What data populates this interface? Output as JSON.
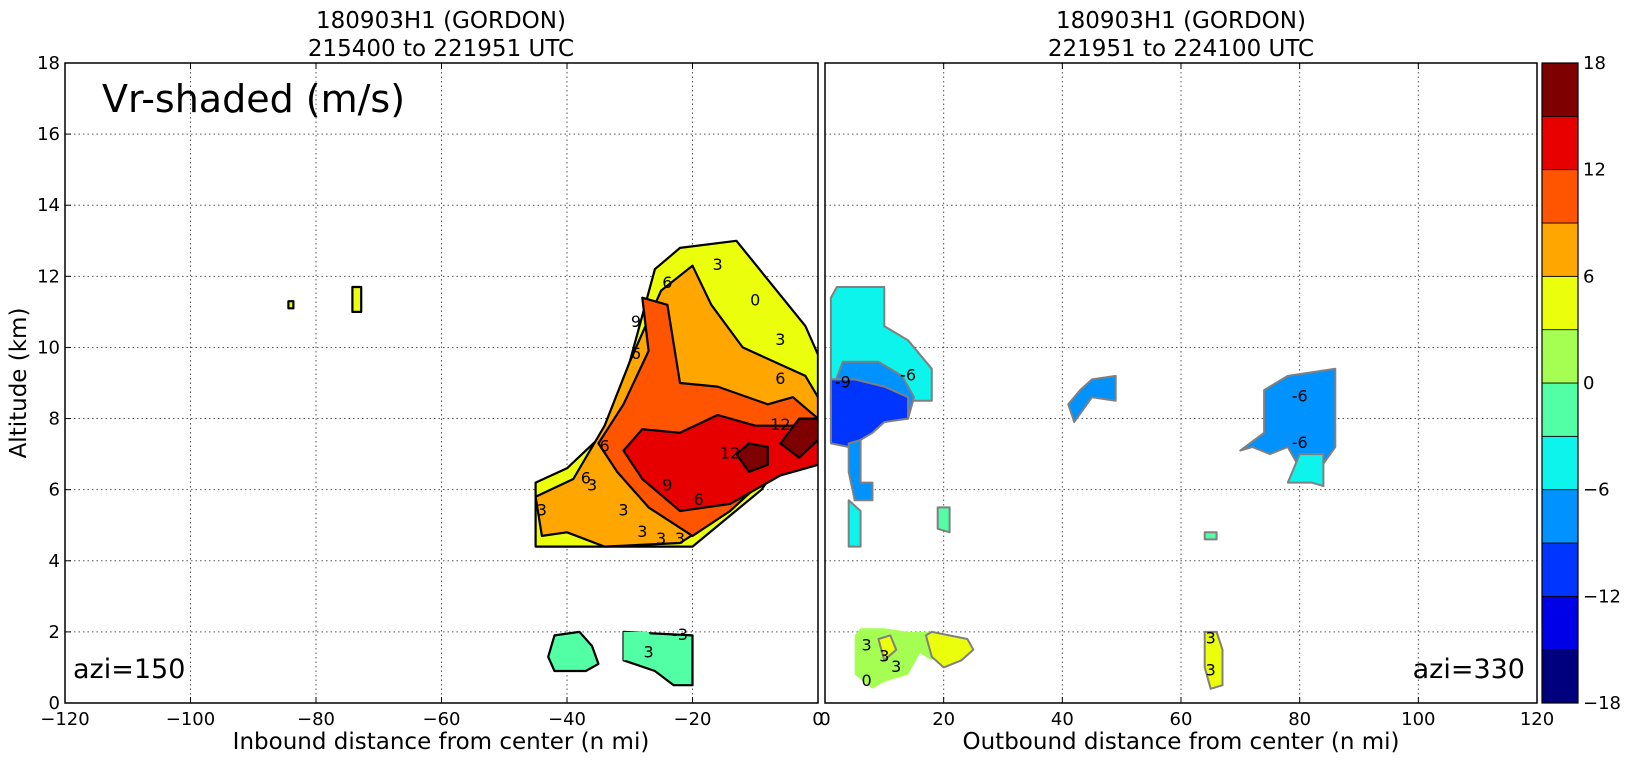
{
  "chart_data": [
    {
      "type": "heatmap",
      "title": [
        "180903H1 (GORDON)",
        "215400 to 221951 UTC"
      ],
      "annotation": "Vr-shaded (m/s)",
      "corner_label": "azi=150",
      "xlabel": "Inbound distance from center (n mi)",
      "ylabel": "Altitude (km)",
      "xlim": [
        -120,
        0
      ],
      "ylim": [
        0,
        18
      ],
      "xticks": [
        "−120",
        "−100",
        "−80",
        "−60",
        "−40",
        "−20",
        "0"
      ],
      "yticks": [
        "0",
        "2",
        "4",
        "6",
        "8",
        "10",
        "12",
        "14",
        "16",
        "18"
      ],
      "grid": true,
      "regions": [
        {
          "value": 3,
          "polygon": [
            [
              -45,
              4.4
            ],
            [
              -45,
              6.2
            ],
            [
              -40,
              6.6
            ],
            [
              -34,
              7.6
            ],
            [
              -30,
              9.6
            ],
            [
              -26,
              12.2
            ],
            [
              -22,
              12.8
            ],
            [
              -13,
              13
            ],
            [
              -2,
              10.6
            ],
            [
              0,
              9.8
            ],
            [
              0,
              7.8
            ],
            [
              -4,
              7.3
            ],
            [
              -9,
              6
            ],
            [
              -20,
              4.4
            ]
          ]
        },
        {
          "value": 6,
          "polygon": [
            [
              -44,
              4.7
            ],
            [
              -45,
              5.8
            ],
            [
              -39,
              6.3
            ],
            [
              -34,
              7.8
            ],
            [
              -30,
              9.6
            ],
            [
              -25,
              11.6
            ],
            [
              -20,
              12.3
            ],
            [
              -17,
              11.2
            ],
            [
              -12,
              10
            ],
            [
              -2,
              9.2
            ],
            [
              0,
              8.6
            ],
            [
              0,
              7.6
            ],
            [
              -6,
              6.8
            ],
            [
              -14,
              5.4
            ],
            [
              -22,
              4.5
            ],
            [
              -34,
              4.4
            ],
            [
              -40,
              4.8
            ]
          ]
        },
        {
          "value": 9,
          "polygon": [
            [
              -35,
              7.3
            ],
            [
              -31,
              8.4
            ],
            [
              -27,
              9.9
            ],
            [
              -28,
              11.4
            ],
            [
              -24,
              11.2
            ],
            [
              -22,
              9
            ],
            [
              -16,
              8.9
            ],
            [
              -8,
              8.4
            ],
            [
              -4,
              8.6
            ],
            [
              0,
              8
            ],
            [
              0,
              7.3
            ],
            [
              -6,
              6.7
            ],
            [
              -14,
              5.4
            ],
            [
              -20,
              4.7
            ],
            [
              -27,
              5.5
            ],
            [
              -32,
              6.5
            ]
          ]
        },
        {
          "value": 12,
          "polygon": [
            [
              -31,
              7.1
            ],
            [
              -28,
              7.7
            ],
            [
              -22,
              7.6
            ],
            [
              -16,
              8.1
            ],
            [
              -10,
              7.8
            ],
            [
              -4,
              7.8
            ],
            [
              0,
              7.5
            ],
            [
              0,
              6.7
            ],
            [
              -6,
              6.4
            ],
            [
              -14,
              5.6
            ],
            [
              -22,
              5.4
            ],
            [
              -28,
              6.3
            ]
          ]
        },
        {
          "value": 15,
          "polygon": [
            [
              -13,
              7
            ],
            [
              -11,
              7.3
            ],
            [
              -8,
              7.2
            ],
            [
              -8,
              6.7
            ],
            [
              -11,
              6.5
            ]
          ]
        },
        {
          "value": 15,
          "polygon": [
            [
              -6,
              7.3
            ],
            [
              -3,
              8
            ],
            [
              0,
              8
            ],
            [
              0,
              7.4
            ],
            [
              -3,
              6.9
            ]
          ]
        },
        {
          "value": -3,
          "polygon": [
            [
              -43,
              1.3
            ],
            [
              -42,
              1.9
            ],
            [
              -38,
              2
            ],
            [
              -36,
              1.6
            ],
            [
              -35,
              1.1
            ],
            [
              -37,
              0.9
            ],
            [
              -42,
              0.9
            ]
          ]
        },
        {
          "value": -3,
          "polygon": [
            [
              -31,
              2
            ],
            [
              -20,
              1.9
            ],
            [
              -20,
              1.4
            ],
            [
              -20,
              0.5
            ],
            [
              -23,
              0.5
            ],
            [
              -26,
              0.9
            ],
            [
              -31,
              1.2
            ]
          ]
        },
        {
          "value": -1.5,
          "polygon": [
            [
              -31,
              2
            ],
            [
              -27,
              2
            ],
            [
              -26,
              1.6
            ],
            [
              -27,
              1.2
            ],
            [
              -31,
              1.2
            ]
          ]
        },
        {
          "value": 3,
          "polygon": [
            [
              -84.4,
              11.1
            ],
            [
              -84.4,
              11.3
            ],
            [
              -83.6,
              11.3
            ],
            [
              -83.6,
              11.1
            ]
          ]
        },
        {
          "value": 3,
          "polygon": [
            [
              -74.2,
              11
            ],
            [
              -74.2,
              11.7
            ],
            [
              -72.8,
              11.7
            ],
            [
              -72.8,
              11
            ]
          ]
        }
      ],
      "contour_labels": [
        {
          "text": "3",
          "x": -16,
          "y": 12.3
        },
        {
          "text": "6",
          "x": -24,
          "y": 11.8
        },
        {
          "text": "0",
          "x": -10,
          "y": 11.3
        },
        {
          "text": "3",
          "x": -6,
          "y": 10.2
        },
        {
          "text": "9",
          "x": -29,
          "y": 10.7
        },
        {
          "text": "6",
          "x": -29,
          "y": 9.8
        },
        {
          "text": "6",
          "x": -6,
          "y": 9.1
        },
        {
          "text": "12",
          "x": -6,
          "y": 7.8
        },
        {
          "text": "12",
          "x": -14,
          "y": 7
        },
        {
          "text": "6",
          "x": -34,
          "y": 7.2
        },
        {
          "text": "6",
          "x": -37,
          "y": 6.3
        },
        {
          "text": "3",
          "x": -36,
          "y": 6.1
        },
        {
          "text": "3",
          "x": -44,
          "y": 5.4
        },
        {
          "text": "9",
          "x": -24,
          "y": 6.1
        },
        {
          "text": "6",
          "x": -19,
          "y": 5.7
        },
        {
          "text": "3",
          "x": -31,
          "y": 5.4
        },
        {
          "text": "3",
          "x": -28,
          "y": 4.8
        },
        {
          "text": "3",
          "x": -25,
          "y": 4.6
        },
        {
          "text": "3",
          "x": -22,
          "y": 4.6
        },
        {
          "text": "-3",
          "x": -22,
          "y": 1.9
        },
        {
          "text": "3",
          "x": -27,
          "y": 1.4
        }
      ]
    },
    {
      "type": "heatmap",
      "title": [
        "180903H1 (GORDON)",
        "221951 to 224100 UTC"
      ],
      "corner_label": "azi=330",
      "xlabel": "Outbound distance from center (n mi)",
      "ylabel": "",
      "xlim": [
        0,
        120
      ],
      "ylim": [
        0,
        18
      ],
      "xticks": [
        "0",
        "20",
        "40",
        "60",
        "80",
        "100",
        "120"
      ],
      "grid": true,
      "regions": [
        {
          "value": -6,
          "polygon": [
            [
              1,
              11.4
            ],
            [
              2,
              11.7
            ],
            [
              10,
              11.7
            ],
            [
              10,
              10.6
            ],
            [
              14,
              10.2
            ],
            [
              18,
              9.4
            ],
            [
              18,
              8.5
            ],
            [
              14,
              8.5
            ],
            [
              14,
              8
            ],
            [
              2,
              7.8
            ],
            [
              1,
              8.4
            ]
          ]
        },
        {
          "value": -9,
          "polygon": [
            [
              1,
              8.7
            ],
            [
              3,
              9.6
            ],
            [
              9,
              9.6
            ],
            [
              13,
              9.2
            ],
            [
              15,
              8.6
            ],
            [
              14,
              8
            ],
            [
              8,
              7.9
            ],
            [
              2,
              7.9
            ],
            [
              1,
              8.1
            ]
          ]
        },
        {
          "value": -12,
          "polygon": [
            [
              1,
              7.9
            ],
            [
              1,
              9.1
            ],
            [
              5,
              9.1
            ],
            [
              10,
              8.9
            ],
            [
              14,
              8.6
            ],
            [
              14,
              8
            ],
            [
              10,
              7.9
            ],
            [
              8,
              7.6
            ],
            [
              6,
              7.4
            ],
            [
              4,
              7.2
            ],
            [
              1,
              7.3
            ]
          ]
        },
        {
          "value": -9,
          "polygon": [
            [
              4,
              7.3
            ],
            [
              6,
              7.4
            ],
            [
              6,
              6.2
            ],
            [
              8,
              6.2
            ],
            [
              8,
              5.7
            ],
            [
              5,
              5.7
            ],
            [
              4,
              6.5
            ]
          ]
        },
        {
          "value": -6,
          "polygon": [
            [
              4,
              5.7
            ],
            [
              4,
              4.4
            ],
            [
              6,
              4.4
            ],
            [
              6,
              5.4
            ]
          ]
        },
        {
          "value": -3,
          "polygon": [
            [
              19,
              4.9
            ],
            [
              19,
              5.5
            ],
            [
              21,
              5.5
            ],
            [
              21,
              4.8
            ]
          ]
        },
        {
          "value": -9,
          "polygon": [
            [
              41,
              8.4
            ],
            [
              43,
              8.8
            ],
            [
              45,
              9.1
            ],
            [
              49,
              9.2
            ],
            [
              49,
              8.5
            ],
            [
              45,
              8.6
            ],
            [
              42,
              7.9
            ]
          ]
        },
        {
          "value": -9,
          "polygon": [
            [
              74,
              8.8
            ],
            [
              78,
              9.2
            ],
            [
              86,
              9.4
            ],
            [
              86,
              7.2
            ],
            [
              83,
              6.5
            ],
            [
              80,
              6.6
            ],
            [
              78,
              7.2
            ],
            [
              75,
              7
            ],
            [
              72,
              7.2
            ],
            [
              70,
              7.1
            ],
            [
              74,
              7.6
            ]
          ]
        },
        {
          "value": -6,
          "polygon": [
            [
              78,
              6.2
            ],
            [
              80,
              6.2
            ],
            [
              82,
              6.2
            ],
            [
              84,
              6.1
            ],
            [
              84,
              7
            ],
            [
              80,
              7
            ]
          ]
        },
        {
          "value": -3,
          "polygon": [
            [
              64,
              4.6
            ],
            [
              64,
              4.8
            ],
            [
              66,
              4.8
            ],
            [
              66,
              4.6
            ]
          ]
        },
        {
          "value": 0,
          "polygon": [
            [
              5,
              1.9
            ],
            [
              6,
              2.1
            ],
            [
              10,
              2.1
            ],
            [
              14,
              2
            ],
            [
              18,
              2
            ],
            [
              20,
              1.4
            ],
            [
              18,
              1.2
            ],
            [
              16,
              1.4
            ],
            [
              14,
              0.8
            ],
            [
              10,
              0.6
            ],
            [
              8,
              0.4
            ],
            [
              5,
              0.8
            ]
          ]
        },
        {
          "value": 3,
          "polygon": [
            [
              17,
              1.9
            ],
            [
              18,
              2
            ],
            [
              24,
              1.8
            ],
            [
              25,
              1.5
            ],
            [
              23,
              1.2
            ],
            [
              20,
              1
            ],
            [
              18,
              1.3
            ]
          ]
        },
        {
          "value": 3,
          "polygon": [
            [
              9,
              1.8
            ],
            [
              11,
              1.9
            ],
            [
              12,
              1.5
            ],
            [
              10,
              1.2
            ]
          ]
        },
        {
          "value": 3,
          "polygon": [
            [
              64,
              2
            ],
            [
              66,
              2
            ],
            [
              67,
              1.5
            ],
            [
              67,
              0.5
            ],
            [
              65,
              0.4
            ],
            [
              64,
              1
            ]
          ]
        }
      ],
      "contour_labels": [
        {
          "text": "-9",
          "x": 3,
          "y": 9
        },
        {
          "text": "-6",
          "x": 14,
          "y": 9.2
        },
        {
          "text": "-6",
          "x": 80,
          "y": 8.6
        },
        {
          "text": "-6",
          "x": 80,
          "y": 7.3
        },
        {
          "text": "3",
          "x": 7,
          "y": 1.6
        },
        {
          "text": "3",
          "x": 10,
          "y": 1.3
        },
        {
          "text": "3",
          "x": 12,
          "y": 1
        },
        {
          "text": "0",
          "x": 7,
          "y": 0.6
        },
        {
          "text": "3",
          "x": 65,
          "y": 1.8
        },
        {
          "text": "3",
          "x": 65,
          "y": 0.9
        }
      ]
    },
    {
      "type": "colorbar",
      "ticks": [
        "−18",
        "−12",
        "−6",
        "0",
        "6",
        "12",
        "18"
      ],
      "range": [
        -18,
        18
      ],
      "levels": [
        -18,
        -15,
        -12,
        -9,
        -6,
        -3,
        0,
        3,
        6,
        9,
        12,
        15,
        18
      ],
      "colors": [
        "#00007f",
        "#0000e6",
        "#0035ff",
        "#0092ff",
        "#0cf4eb",
        "#52ffa4",
        "#a4ff52",
        "#ebff0c",
        "#ffa600",
        "#ff5400",
        "#e60000",
        "#7f0000"
      ]
    }
  ]
}
